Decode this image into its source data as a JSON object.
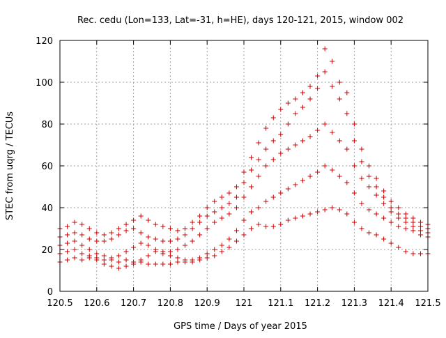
{
  "chart_data": {
    "type": "scatter",
    "title": "Rec. cedu (Lon=133, Lat=-31, h=HE), days 120-121, 2015, window 002",
    "xlabel": "GPS time / Days of year 2015",
    "ylabel": "STEC from uqrg / TECUs",
    "xlim": [
      120.5,
      121.5
    ],
    "ylim": [
      0,
      120
    ],
    "xticks": [
      "120.5",
      "120.6",
      "120.7",
      "120.8",
      "120.9",
      "121",
      "121.1",
      "121.2",
      "121.3",
      "121.4",
      "121.5"
    ],
    "yticks": [
      "0",
      "20",
      "40",
      "60",
      "80",
      "100",
      "120"
    ],
    "grid": true,
    "marker": "+",
    "marker_color": "#cc0000",
    "series": [
      {
        "x": [
          120.5,
          120.52,
          120.54,
          120.56,
          120.58,
          120.6,
          120.62,
          120.64,
          120.66,
          120.68,
          120.7,
          120.72,
          120.74,
          120.76,
          120.78,
          120.8,
          120.82,
          120.84,
          120.86,
          120.88,
          120.9,
          120.92,
          120.94,
          120.96,
          120.98,
          121.0,
          121.02,
          121.04,
          121.06,
          121.08,
          121.1,
          121.12,
          121.14,
          121.16,
          121.18,
          121.2,
          121.22,
          121.24,
          121.26,
          121.28,
          121.3,
          121.32,
          121.34,
          121.36,
          121.38,
          121.4,
          121.42,
          121.44,
          121.46,
          121.48,
          121.5
        ],
        "y": [
          14,
          15,
          16,
          15,
          16,
          16,
          15,
          15,
          14,
          15,
          14,
          14,
          13,
          13,
          13,
          13,
          14,
          14,
          14,
          15,
          16,
          17,
          19,
          21,
          24,
          27,
          30,
          32,
          31,
          31,
          32,
          34,
          35,
          36,
          37,
          38,
          39,
          40,
          39,
          37,
          33,
          30,
          28,
          27,
          25,
          23,
          21,
          19,
          18,
          18,
          18
        ]
      },
      {
        "x": [
          120.5,
          120.52,
          120.54,
          120.56,
          120.58,
          120.6,
          120.62,
          120.64,
          120.66,
          120.68,
          120.7,
          120.72,
          120.74,
          120.76,
          120.78,
          120.8,
          120.82,
          120.84,
          120.86,
          120.88,
          120.9,
          120.92,
          120.94,
          120.96,
          120.98,
          121.0,
          121.02,
          121.04,
          121.06,
          121.08,
          121.1,
          121.12,
          121.14,
          121.16,
          121.18,
          121.2,
          121.22,
          121.24,
          121.26,
          121.28,
          121.3,
          121.32,
          121.34,
          121.36,
          121.38,
          121.4,
          121.42,
          121.44,
          121.46,
          121.48,
          121.5
        ],
        "y": [
          18,
          19,
          20,
          18,
          17,
          15,
          13,
          12,
          11,
          12,
          13,
          15,
          17,
          19,
          18,
          17,
          16,
          15,
          15,
          16,
          18,
          20,
          22,
          25,
          29,
          34,
          38,
          40,
          43,
          45,
          47,
          49,
          51,
          53,
          55,
          57,
          60,
          58,
          55,
          52,
          47,
          42,
          39,
          37,
          35,
          33,
          31,
          30,
          29,
          27,
          26
        ]
      },
      {
        "x": [
          120.5,
          120.52,
          120.54,
          120.56,
          120.58,
          120.6,
          120.62,
          120.64,
          120.66,
          120.68,
          120.7,
          120.72,
          120.74,
          120.76,
          120.78,
          120.8,
          120.82,
          120.84,
          120.86,
          120.88,
          120.9,
          120.92,
          120.94,
          120.96,
          120.98,
          121.0,
          121.02,
          121.04,
          121.06,
          121.08,
          121.1,
          121.12,
          121.14,
          121.16,
          121.18,
          121.2,
          121.22,
          121.24,
          121.26,
          121.28,
          121.3,
          121.32,
          121.34,
          121.36,
          121.38,
          121.4,
          121.42,
          121.44,
          121.46,
          121.48,
          121.5
        ],
        "y": [
          22,
          23,
          24,
          22,
          20,
          18,
          17,
          16,
          17,
          19,
          21,
          23,
          22,
          20,
          19,
          19,
          20,
          22,
          24,
          27,
          30,
          33,
          35,
          37,
          40,
          45,
          50,
          55,
          60,
          63,
          66,
          68,
          70,
          72,
          74,
          77,
          80,
          76,
          72,
          68,
          60,
          54,
          50,
          46,
          42,
          38,
          35,
          33,
          31,
          29,
          28
        ]
      },
      {
        "x": [
          120.5,
          120.52,
          120.54,
          120.56,
          120.58,
          120.6,
          120.62,
          120.64,
          120.66,
          120.68,
          120.7,
          120.72,
          120.74,
          120.76,
          120.78,
          120.8,
          120.82,
          120.84,
          120.86,
          120.88,
          120.9,
          120.92,
          120.94,
          120.96,
          120.98,
          121.0,
          121.02,
          121.04,
          121.06,
          121.08,
          121.1,
          121.12,
          121.14,
          121.16,
          121.18,
          121.2,
          121.22,
          121.24,
          121.26,
          121.28,
          121.3,
          121.32,
          121.34,
          121.36,
          121.38,
          121.4,
          121.42,
          121.44,
          121.46,
          121.48,
          121.5
        ],
        "y": [
          26,
          27,
          28,
          27,
          25,
          24,
          24,
          25,
          27,
          29,
          30,
          28,
          26,
          25,
          24,
          24,
          25,
          27,
          30,
          33,
          36,
          38,
          40,
          42,
          45,
          52,
          58,
          63,
          68,
          72,
          75,
          80,
          85,
          88,
          92,
          97,
          105,
          98,
          92,
          85,
          72,
          62,
          55,
          50,
          45,
          40,
          37,
          35,
          33,
          31,
          30
        ]
      },
      {
        "x": [
          120.5,
          120.52,
          120.54,
          120.56,
          120.58,
          120.6,
          120.62,
          120.64,
          120.66,
          120.68,
          120.7,
          120.72,
          120.74,
          120.76,
          120.78,
          120.8,
          120.82,
          120.84,
          120.86,
          120.88,
          120.9,
          120.92,
          120.94,
          120.96,
          120.98,
          121.0,
          121.02,
          121.04,
          121.06,
          121.08,
          121.1,
          121.12,
          121.14,
          121.16,
          121.18,
          121.2,
          121.22,
          121.24,
          121.26,
          121.28,
          121.3,
          121.32,
          121.34,
          121.36,
          121.38,
          121.4,
          121.42,
          121.44,
          121.46,
          121.48,
          121.5
        ],
        "y": [
          30,
          31,
          33,
          32,
          30,
          28,
          27,
          28,
          30,
          32,
          34,
          36,
          34,
          32,
          31,
          30,
          29,
          30,
          33,
          36,
          40,
          43,
          45,
          47,
          50,
          57,
          64,
          71,
          78,
          83,
          87,
          90,
          92,
          95,
          98,
          103,
          116,
          110,
          100,
          95,
          80,
          68,
          60,
          54,
          48,
          43,
          40,
          37,
          35,
          33,
          32
        ]
      }
    ]
  }
}
